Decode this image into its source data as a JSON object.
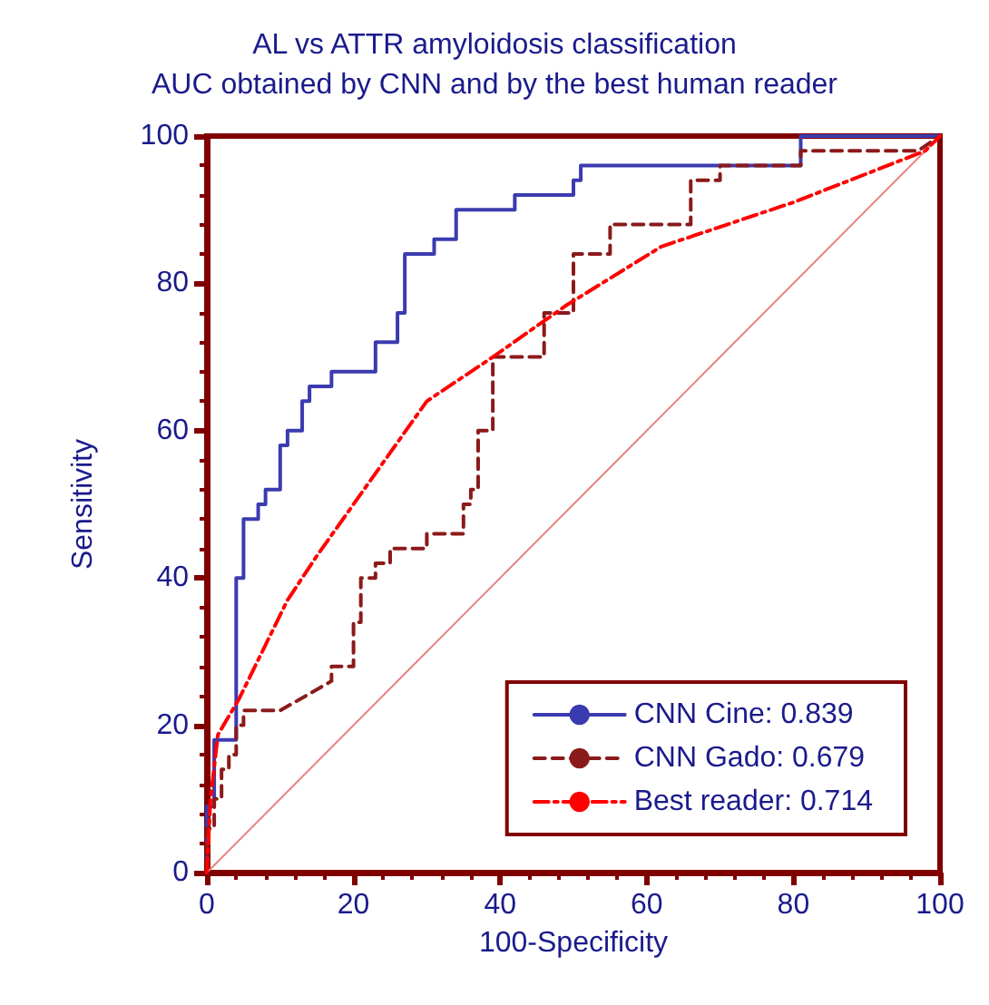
{
  "chart_data": {
    "type": "line",
    "title": "AL vs ATTR amyloidosis classification",
    "subtitle": "AUC obtained by CNN and by the best human reader",
    "xlabel": "100-Specificity",
    "ylabel": "Sensitivity",
    "xlim": [
      0,
      100
    ],
    "ylim": [
      0,
      100
    ],
    "xticks": [
      0,
      20,
      40,
      60,
      80,
      100
    ],
    "yticks": [
      0,
      20,
      40,
      60,
      80,
      100
    ],
    "grid": false,
    "legend": "bottom right",
    "marker": "none",
    "series": [
      {
        "name": "CNN Cine: 0.839",
        "color": "#3b3bb0",
        "line_style": "solid",
        "x": [
          0,
          0,
          1,
          1,
          4,
          4,
          5,
          5,
          7,
          7,
          8,
          8,
          10,
          10,
          11,
          11,
          13,
          13,
          14,
          14,
          17,
          17,
          23,
          23,
          26,
          26,
          27,
          27,
          31,
          31,
          34,
          34,
          42,
          42,
          50,
          50,
          51,
          51,
          81,
          81,
          100
        ],
        "values": [
          0,
          9,
          9,
          18,
          18,
          40,
          40,
          48,
          48,
          50,
          50,
          52,
          52,
          58,
          58,
          60,
          60,
          64,
          64,
          66,
          66,
          68,
          68,
          72,
          72,
          76,
          76,
          84,
          84,
          86,
          86,
          90,
          90,
          92,
          92,
          94,
          94,
          96,
          96,
          100,
          100
        ]
      },
      {
        "name": "CNN Gado: 0.679",
        "color": "#8b1a1a",
        "line_style": "dashed",
        "x": [
          0,
          0,
          1,
          1,
          2,
          2,
          3,
          3,
          4,
          4,
          5,
          5,
          10,
          17,
          17,
          20,
          20,
          21,
          21,
          23,
          23,
          25,
          25,
          30,
          30,
          35,
          35,
          36,
          36,
          37,
          37,
          39,
          39,
          46,
          46,
          50,
          50,
          55,
          55,
          66,
          66,
          70,
          70,
          81,
          81,
          97,
          100
        ],
        "values": [
          0,
          6,
          6,
          10,
          10,
          14,
          14,
          16,
          16,
          20,
          20,
          22,
          22,
          26,
          28,
          28,
          34,
          34,
          40,
          40,
          42,
          42,
          44,
          44,
          46,
          46,
          50,
          50,
          52,
          52,
          60,
          60,
          70,
          70,
          76,
          76,
          84,
          84,
          88,
          88,
          94,
          94,
          96,
          96,
          98,
          98,
          100
        ]
      },
      {
        "name": "Best reader: 0.714",
        "color": "#ff0000",
        "line_style": "dashdot",
        "x": [
          0,
          0.5,
          1.5,
          4.4,
          11,
          15,
          20,
          25,
          30,
          39,
          49,
          62,
          80,
          98,
          100
        ],
        "values": [
          0,
          10,
          18.7,
          23.6,
          37,
          43,
          50,
          57,
          64,
          70,
          77,
          85,
          91,
          98,
          100
        ]
      },
      {
        "color": "#e88080",
        "line_style": "solid",
        "x": [
          0,
          100
        ],
        "values": [
          0,
          100
        ]
      }
    ]
  }
}
